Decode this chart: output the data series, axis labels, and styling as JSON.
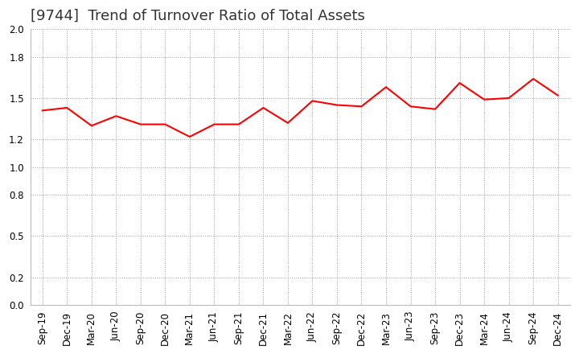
{
  "title": "[9744]  Trend of Turnover Ratio of Total Assets",
  "labels": [
    "Sep-19",
    "Dec-19",
    "Mar-20",
    "Jun-20",
    "Sep-20",
    "Dec-20",
    "Mar-21",
    "Jun-21",
    "Sep-21",
    "Dec-21",
    "Mar-22",
    "Jun-22",
    "Sep-22",
    "Dec-22",
    "Mar-23",
    "Jun-23",
    "Sep-23",
    "Dec-23",
    "Mar-24",
    "Jun-24",
    "Sep-24",
    "Dec-24"
  ],
  "values": [
    1.41,
    1.43,
    1.3,
    1.37,
    1.31,
    1.31,
    1.22,
    1.31,
    1.31,
    1.43,
    1.32,
    1.48,
    1.45,
    1.44,
    1.58,
    1.44,
    1.42,
    1.61,
    1.49,
    1.5,
    1.64,
    1.52
  ],
  "line_color": "#ff0000",
  "line_width": 1.5,
  "ylim": [
    0.0,
    2.0
  ],
  "yticks": [
    0.0,
    0.2,
    0.5,
    0.8,
    1.0,
    1.2,
    1.5,
    1.8,
    2.0
  ],
  "grid_color": "#999999",
  "background_color": "#ffffff",
  "title_fontsize": 13,
  "tick_fontsize": 8.5,
  "title_color": "#333333"
}
